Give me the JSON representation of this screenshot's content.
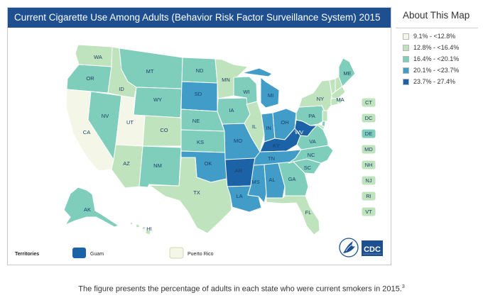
{
  "map": {
    "title": "Current Cigarette Use Among Adults (Behavior Risk Factor Surveillance System) 2015",
    "colors": {
      "c1": "#f4f7e8",
      "c2": "#bfe3bd",
      "c3": "#7fcdbb",
      "c4": "#419dc8",
      "c5": "#1b62a6"
    },
    "state_labels": [
      "WA",
      "OR",
      "CA",
      "NV",
      "ID",
      "MT",
      "WY",
      "UT",
      "AZ",
      "CO",
      "NM",
      "ND",
      "SD",
      "NE",
      "KS",
      "OK",
      "TX",
      "MN",
      "IA",
      "MO",
      "AR",
      "LA",
      "WI",
      "IL",
      "MI",
      "IN",
      "OH",
      "KY",
      "TN",
      "MS",
      "AL",
      "GA",
      "FL",
      "SC",
      "NC",
      "VA",
      "WV",
      "PA",
      "NY",
      "ME",
      "MA",
      "AK",
      "HI"
    ],
    "small_states": [
      "CT",
      "DC",
      "DE",
      "MD",
      "NH",
      "NJ",
      "RI",
      "VT"
    ],
    "territories_label": "Territories",
    "territories": [
      {
        "name": "Guam",
        "color": "#1b62a6"
      },
      {
        "name": "Puerto Rico",
        "color": "#f4f7e8"
      }
    ],
    "logos": {
      "hhs": "hhs-eagle",
      "cdc": "CDC"
    }
  },
  "legend": {
    "title": "About This Map",
    "items": [
      {
        "label": "9.1% - <12.8%",
        "color": "#f4f7e8"
      },
      {
        "label": "12.8% - <16.4%",
        "color": "#bfe3bd"
      },
      {
        "label": "16.4% - <20.1%",
        "color": "#7fcdbb"
      },
      {
        "label": "20.1% - <23.7%",
        "color": "#419dc8"
      },
      {
        "label": "23.7% - 27.4%",
        "color": "#1b62a6"
      }
    ]
  },
  "caption": {
    "text": "The figure presents the percentage of adults in each state who were current smokers in 2015.",
    "footnote": "3"
  }
}
